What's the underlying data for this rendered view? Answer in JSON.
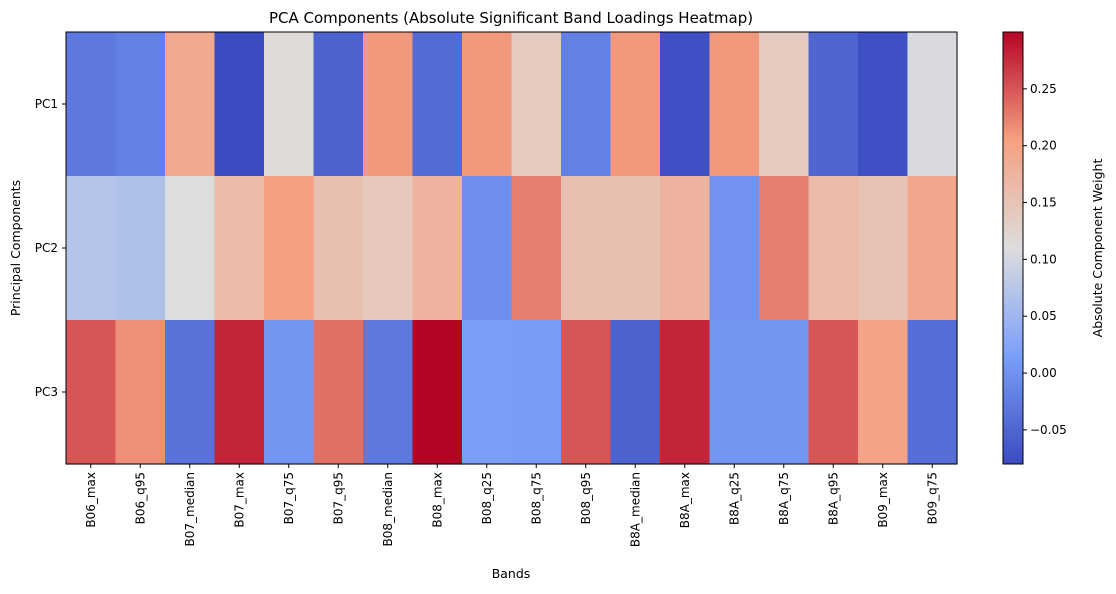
{
  "chart_data": {
    "type": "heatmap",
    "title": "PCA Components (Absolute Significant Band Loadings Heatmap)",
    "xlabel": "Bands",
    "ylabel": "Principal Components",
    "x": [
      "B06_max",
      "B06_q95",
      "B07_median",
      "B07_max",
      "B07_q75",
      "B07_q95",
      "B08_median",
      "B08_max",
      "B08_q25",
      "B08_q75",
      "B08_q95",
      "B8A_median",
      "B8A_max",
      "B8A_q25",
      "B8A_q75",
      "B8A_q95",
      "B09_max",
      "B09_q75"
    ],
    "y": [
      "PC1",
      "PC2",
      "PC3"
    ],
    "values": [
      [
        -0.03,
        -0.02,
        0.19,
        -0.08,
        0.115,
        -0.055,
        0.21,
        -0.045,
        0.21,
        0.14,
        -0.02,
        0.21,
        -0.075,
        0.21,
        0.14,
        -0.05,
        -0.075,
        0.105
      ],
      [
        0.07,
        0.065,
        0.11,
        0.165,
        0.205,
        0.155,
        0.145,
        0.175,
        -0.005,
        0.225,
        0.155,
        0.155,
        0.175,
        0.0,
        0.225,
        0.165,
        0.15,
        0.195
      ],
      [
        0.25,
        0.215,
        -0.035,
        0.28,
        0.005,
        0.235,
        -0.03,
        0.3,
        0.015,
        0.01,
        0.25,
        -0.055,
        0.28,
        0.005,
        0.005,
        0.25,
        0.2,
        -0.04
      ]
    ],
    "colormap": "coolwarm",
    "vmin": -0.08,
    "vmax": 0.3,
    "colorbar": {
      "label": "Absolute Component Weight",
      "ticks": [
        -0.05,
        0.0,
        0.05,
        0.1,
        0.15,
        0.2,
        0.25
      ],
      "tick_labels": [
        "−0.05",
        "0.00",
        "0.05",
        "0.10",
        "0.15",
        "0.20",
        "0.25"
      ]
    }
  }
}
